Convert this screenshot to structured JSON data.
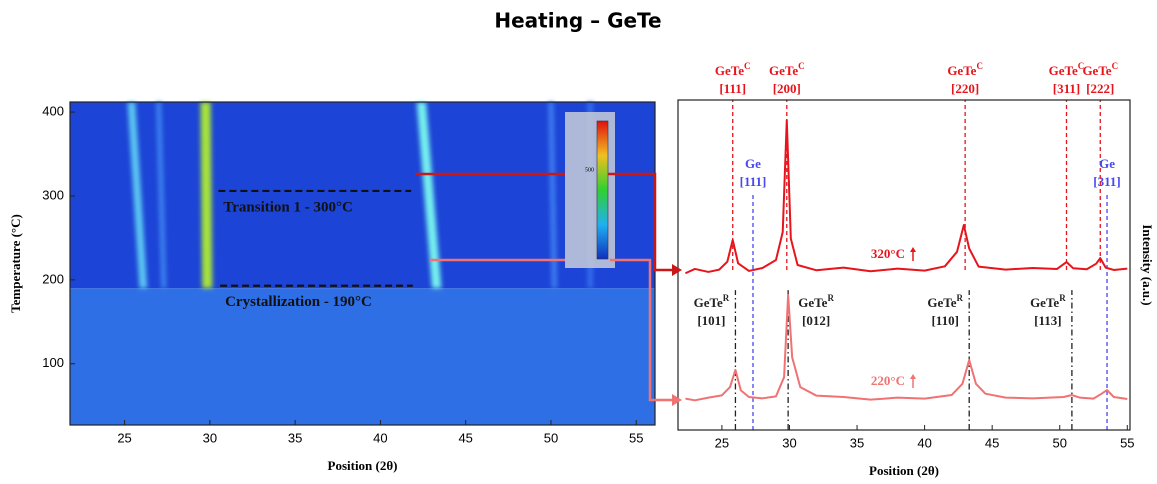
{
  "title": "Heating – GeTe",
  "chart_data": [
    {
      "type": "heatmap",
      "x_label": "Position (2θ)",
      "y_label": "Temperature (°C)",
      "xlim": [
        21.8,
        56.1
      ],
      "ylim": [
        27,
        412
      ],
      "xticks": [
        25,
        30,
        35,
        40,
        45,
        50,
        55
      ],
      "yticks": [
        100,
        200,
        300,
        400
      ],
      "background": [
        {
          "y": [
            27,
            190
          ],
          "color": "#2f6fe6"
        },
        {
          "y": [
            190,
            412
          ],
          "color": "#1c44d6"
        }
      ],
      "streaks": [
        {
          "x": [
            26.1,
            25.4
          ],
          "y": [
            190,
            412
          ],
          "width": 0.45,
          "color": "#5cc8f2"
        },
        {
          "x": [
            27.3,
            27.0
          ],
          "y": [
            190,
            412
          ],
          "width": 0.3,
          "color": "#3e84f0"
        },
        {
          "x": [
            29.85,
            29.75
          ],
          "y": [
            190,
            412
          ],
          "width": 0.6,
          "color": "#a6e23a"
        },
        {
          "x": [
            43.3,
            42.4
          ],
          "y": [
            190,
            412
          ],
          "width": 0.55,
          "color": "#74f0ee"
        },
        {
          "x": [
            50.2,
            50.0
          ],
          "y": [
            190,
            412
          ],
          "width": 0.3,
          "color": "#3f80f2"
        },
        {
          "x": [
            52.3,
            52.3
          ],
          "y": [
            190,
            412
          ],
          "width": 0.3,
          "color": "#3470ee"
        }
      ],
      "annotations": [
        {
          "text": "Transition 1 - 300°C",
          "x": [
            30.5,
            41.8
          ],
          "y": 306
        },
        {
          "text": "Crystallization - 190°C",
          "x": [
            30.6,
            41.9
          ],
          "y": 193
        }
      ],
      "colorbar_label": "500"
    },
    {
      "type": "line",
      "x_label": "Position (2θ)",
      "y_label": "Intensity (a.u.)",
      "xlim": [
        21.75,
        55.2
      ],
      "ylim": [
        0,
        100
      ],
      "xticks": [
        25,
        30,
        35,
        40,
        45,
        50,
        55
      ],
      "series": [
        {
          "name": "320°C",
          "color": "#e8141b",
          "x": [
            22.3,
            23,
            24,
            24.8,
            25.4,
            25.8,
            26.2,
            27,
            28,
            29,
            29.5,
            29.8,
            30.1,
            30.6,
            32,
            34,
            36,
            38,
            40,
            41.5,
            42.4,
            42.9,
            43.3,
            44,
            46,
            48,
            49.8,
            50.5,
            51,
            52,
            52.7,
            53.0,
            53.4,
            54,
            55
          ],
          "values": [
            47.5,
            48.8,
            47.9,
            48.6,
            51,
            57.6,
            50.5,
            48.2,
            49.1,
            51.5,
            60,
            93.9,
            58,
            50,
            48.4,
            49.2,
            48.1,
            48.9,
            48.3,
            49.6,
            54,
            62.1,
            55,
            49.5,
            48.6,
            49.1,
            48.8,
            50.9,
            49,
            48.7,
            50.4,
            52.1,
            49.2,
            48.5,
            48.9
          ]
        },
        {
          "name": "220°C",
          "color": "#f07272",
          "x": [
            22.3,
            23,
            24,
            25,
            25.6,
            26.0,
            26.4,
            27,
            28,
            29,
            29.6,
            29.9,
            30.2,
            30.8,
            32,
            34,
            36,
            38,
            40,
            42,
            42.8,
            43.3,
            43.8,
            44.5,
            46,
            48,
            50.3,
            50.9,
            51.5,
            52.5,
            53.1,
            53.5,
            54,
            55
          ],
          "values": [
            9.5,
            9,
            9.8,
            10.5,
            13,
            18.2,
            12,
            10,
            9.6,
            10.2,
            16,
            40.9,
            22,
            13,
            10.4,
            10,
            9.2,
            9.8,
            9.5,
            10.6,
            14,
            21.2,
            14,
            11,
            9.8,
            9.6,
            10,
            10.6,
            9.8,
            9.5,
            11,
            12.1,
            10,
            9.4
          ]
        }
      ],
      "cubic": {
        "color": "#e8141b",
        "y": [
          48.5,
          100
        ],
        "peaks": [
          {
            "label": "GeTe",
            "sup": "C",
            "index": "[111]",
            "x": 25.8
          },
          {
            "label": "GeTe",
            "sup": "C",
            "index": "[200]",
            "x": 29.8
          },
          {
            "label": "GeTe",
            "sup": "C",
            "index": "[220]",
            "x": 43.0
          },
          {
            "label": "GeTe",
            "sup": "C",
            "index": "[311]",
            "x": 50.5
          },
          {
            "label": "GeTe",
            "sup": "C",
            "index": "[222]",
            "x": 53.0
          }
        ]
      },
      "ge": {
        "color": "#4848ee",
        "y": [
          0,
          71.2
        ],
        "peaks": [
          {
            "label": "Ge",
            "index": "[111]",
            "x": 27.3
          },
          {
            "label": "Ge",
            "index": "[311]",
            "x": 53.5
          }
        ]
      },
      "rhombohedral": {
        "color": "#222222",
        "y": [
          0,
          42.4
        ],
        "peaks": [
          {
            "label": "GeTe",
            "sup": "R",
            "index": "[101]",
            "x": 26.0
          },
          {
            "label": "GeTe",
            "sup": "R",
            "index": "[012]",
            "x": 29.9
          },
          {
            "label": "GeTe",
            "sup": "R",
            "index": "[110]",
            "x": 43.3
          },
          {
            "label": "GeTe",
            "sup": "R",
            "index": "[113]",
            "x": 50.9
          }
        ]
      }
    }
  ]
}
